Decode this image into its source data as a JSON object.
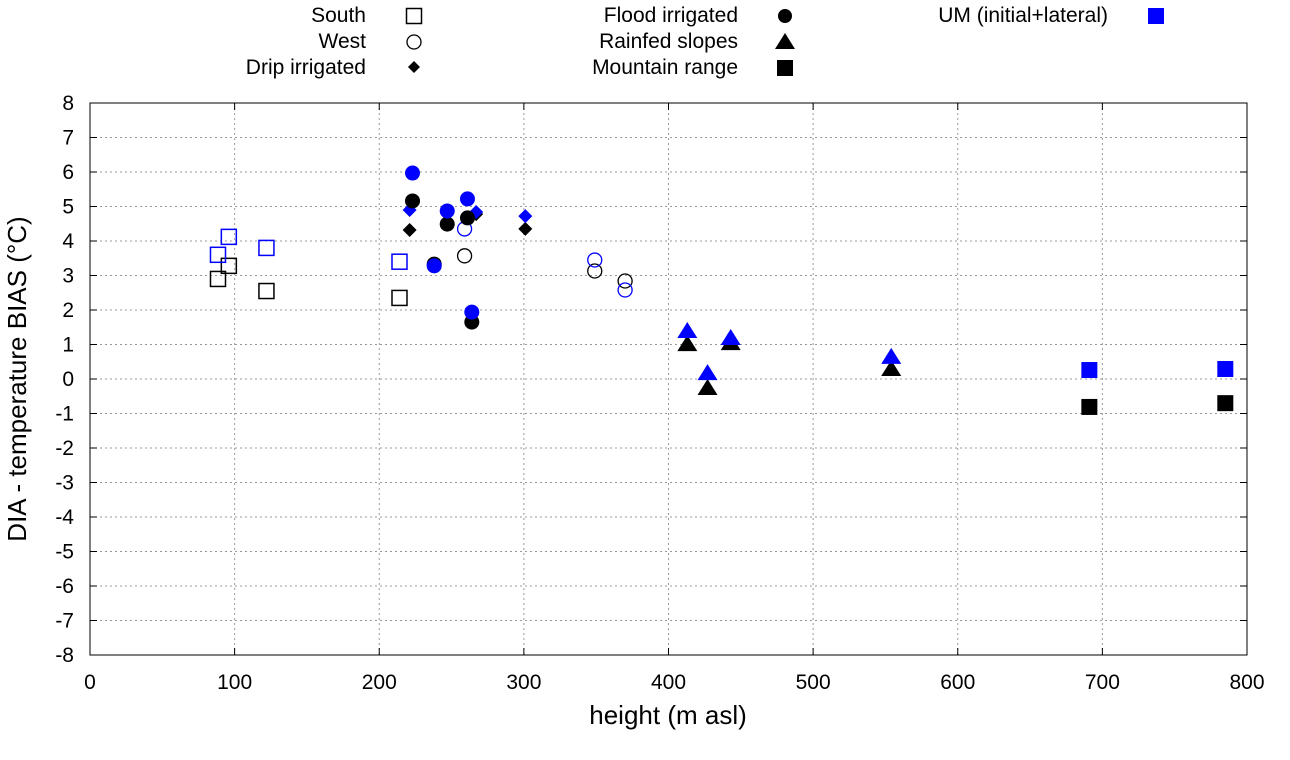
{
  "chart_data": {
    "type": "scatter",
    "title": "",
    "xlabel": "height (m asl)",
    "ylabel": "DIA - temperature BIAS (°C)",
    "xlim": [
      0,
      800
    ],
    "ylim": [
      -8,
      8
    ],
    "xticks": [
      "0",
      "100",
      "200",
      "300",
      "400",
      "500",
      "600",
      "700",
      "800"
    ],
    "yticks": [
      "8",
      "7",
      "6",
      "5",
      "4",
      "3",
      "2",
      "1",
      "0",
      "-1",
      "-2",
      "-3",
      "-4",
      "-5",
      "-6",
      "-7",
      "-8"
    ],
    "grid": true,
    "legend_placement": "top-outside",
    "colors": {
      "observed": "#000000",
      "model": "#0000ff"
    },
    "legend": [
      {
        "label": "South",
        "marker": "open-square",
        "color": "#000000"
      },
      {
        "label": "West",
        "marker": "open-circle",
        "color": "#000000"
      },
      {
        "label": "Drip irrigated",
        "marker": "diamond",
        "color": "#000000"
      },
      {
        "label": "Flood irrigated",
        "marker": "circle",
        "color": "#000000"
      },
      {
        "label": "Rainfed slopes",
        "marker": "triangle",
        "color": "#000000"
      },
      {
        "label": "Mountain range",
        "marker": "square",
        "color": "#000000"
      },
      {
        "label": "UM (initial+lateral)",
        "marker": "square",
        "color": "#0000ff"
      }
    ],
    "series": [
      {
        "name": "South",
        "marker": "open-square",
        "observed": [
          [
            88.5,
            2.9
          ],
          [
            96,
            3.28
          ],
          [
            122,
            2.55
          ],
          [
            214,
            2.35
          ]
        ],
        "model": [
          [
            88.5,
            3.6
          ],
          [
            96,
            4.12
          ],
          [
            122,
            3.8
          ],
          [
            214,
            3.4
          ]
        ]
      },
      {
        "name": "West",
        "marker": "open-circle",
        "observed": [
          [
            259,
            3.57
          ],
          [
            349,
            3.13
          ],
          [
            370,
            2.84
          ]
        ],
        "model": [
          [
            259,
            4.35
          ],
          [
            349,
            3.45
          ],
          [
            370,
            2.58
          ]
        ]
      },
      {
        "name": "Drip irrigated",
        "marker": "diamond",
        "observed": [
          [
            221,
            4.32
          ],
          [
            267,
            4.78
          ],
          [
            301,
            4.35
          ]
        ],
        "model": [
          [
            221,
            4.9
          ],
          [
            267,
            4.84
          ],
          [
            301,
            4.72
          ]
        ]
      },
      {
        "name": "Flood irrigated",
        "marker": "circle",
        "observed": [
          [
            223,
            5.16
          ],
          [
            238,
            3.33
          ],
          [
            247,
            4.49
          ],
          [
            261,
            4.67
          ],
          [
            264,
            1.65
          ]
        ],
        "model": [
          [
            223,
            5.97
          ],
          [
            238,
            3.28
          ],
          [
            247,
            4.87
          ],
          [
            261,
            5.22
          ],
          [
            264,
            1.94
          ]
        ]
      },
      {
        "name": "Rainfed slopes",
        "marker": "triangle",
        "observed": [
          [
            413,
            1.01
          ],
          [
            427,
            -0.26
          ],
          [
            443,
            1.04
          ],
          [
            554,
            0.29
          ]
        ],
        "model": [
          [
            413,
            1.39
          ],
          [
            427,
            0.17
          ],
          [
            443,
            1.19
          ],
          [
            554,
            0.64
          ]
        ]
      },
      {
        "name": "Mountain range",
        "marker": "square",
        "observed": [
          [
            691,
            -0.81
          ],
          [
            785,
            -0.7
          ]
        ],
        "model": [
          [
            691,
            0.26
          ],
          [
            785,
            0.29
          ]
        ]
      }
    ]
  }
}
